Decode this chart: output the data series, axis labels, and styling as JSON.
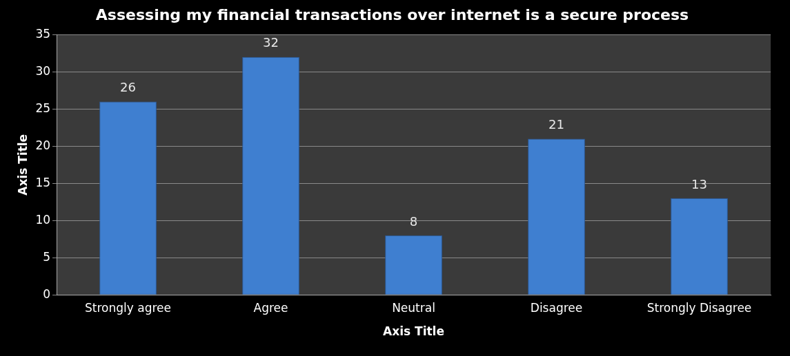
{
  "chart_data": {
    "type": "bar",
    "title": "Assessing my financial transactions over internet is a secure process",
    "xlabel": "Axis Title",
    "ylabel": "Axis Title",
    "categories": [
      "Strongly agree",
      "Agree",
      "Neutral",
      "Disagree",
      "Strongly Disagree"
    ],
    "values": [
      26,
      32,
      8,
      21,
      13
    ],
    "color": "#3f7fd0",
    "ylim": [
      0,
      35
    ],
    "yticks": [
      0,
      5,
      10,
      15,
      20,
      25,
      30,
      35
    ],
    "grid": "y",
    "data_labels": true
  }
}
